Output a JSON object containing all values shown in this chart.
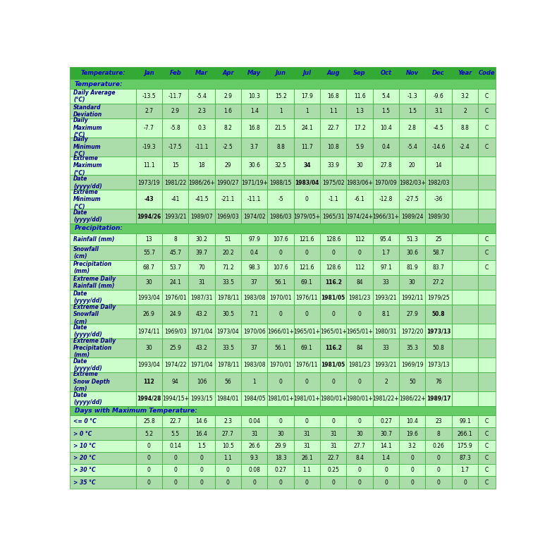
{
  "col_header_bg": "#33AA33",
  "col_header_text": "#0000CC",
  "section_header_bg": "#66CC66",
  "section_header_text": "#0000CC",
  "row_bg_a": "#CCFFCC",
  "row_bg_b": "#AADDAA",
  "border_color": "#33AA33",
  "label_text_color": "#000080",
  "data_text_color": "#000000",
  "col_labels": [
    "Temperature:",
    "Jan",
    "Feb",
    "Mar",
    "Apr",
    "May",
    "Jun",
    "Jul",
    "Aug",
    "Sep",
    "Oct",
    "Nov",
    "Dec",
    "Year",
    "Code"
  ],
  "col_widths_rel": [
    2.05,
    0.82,
    0.82,
    0.82,
    0.82,
    0.82,
    0.82,
    0.82,
    0.82,
    0.82,
    0.82,
    0.82,
    0.82,
    0.82,
    0.55
  ],
  "rows": [
    {
      "type": "section_header",
      "label": "Temperature:"
    },
    {
      "type": "data",
      "label": "Daily Average\n(°C)",
      "values": [
        "-13.5",
        "-11.7",
        "-5.4",
        "2.9",
        "10.3",
        "15.2",
        "17.9",
        "16.8",
        "11.6",
        "5.4",
        "-1.3",
        "-9.6",
        "3.2",
        "C"
      ],
      "bold_vals": []
    },
    {
      "type": "data",
      "label": "Standard\nDeviation",
      "values": [
        "2.7",
        "2.9",
        "2.3",
        "1.6",
        "1.4",
        "1",
        "1",
        "1.1",
        "1.3",
        "1.5",
        "1.5",
        "3.1",
        "2",
        "C"
      ],
      "bold_vals": []
    },
    {
      "type": "data",
      "label": "Daily\nMaximum\n(°C)",
      "values": [
        "-7.7",
        "-5.8",
        "0.3",
        "8.2",
        "16.8",
        "21.5",
        "24.1",
        "22.7",
        "17.2",
        "10.4",
        "2.8",
        "-4.5",
        "8.8",
        "C"
      ],
      "bold_vals": []
    },
    {
      "type": "data",
      "label": "Daily\nMinimum\n(°C)",
      "values": [
        "-19.3",
        "-17.5",
        "-11.1",
        "-2.5",
        "3.7",
        "8.8",
        "11.7",
        "10.8",
        "5.9",
        "0.4",
        "-5.4",
        "-14.6",
        "-2.4",
        "C"
      ],
      "bold_vals": []
    },
    {
      "type": "data",
      "label": "Extreme\nMaximum\n(°C)",
      "values": [
        "11.1",
        "15",
        "18",
        "29",
        "30.6",
        "32.5",
        "34",
        "33.9",
        "30",
        "27.8",
        "20",
        "14",
        "",
        ""
      ],
      "bold_vals": [
        "34"
      ]
    },
    {
      "type": "data",
      "label": "Date\n(yyyy/dd)",
      "values": [
        "1973/19",
        "1981/22",
        "1986/26+",
        "1990/27",
        "1971/19+",
        "1988/15",
        "1983/04",
        "1975/02",
        "1983/06+",
        "1970/09",
        "1982/03+",
        "1982/03",
        "",
        ""
      ],
      "bold_vals": [
        "1983/04"
      ]
    },
    {
      "type": "data",
      "label": "Extreme\nMinimum\n(°C)",
      "values": [
        "-43",
        "-41",
        "-41.5",
        "-21.1",
        "-11.1",
        "-5",
        "0",
        "-1.1",
        "-6.1",
        "-12.8",
        "-27.5",
        "-36",
        "",
        ""
      ],
      "bold_vals": [
        "-43"
      ]
    },
    {
      "type": "data",
      "label": "Date\n(yyyy/dd)",
      "values": [
        "1994/26",
        "1993/21",
        "1989/07",
        "1969/03",
        "1974/02",
        "1986/03",
        "1979/05+",
        "1965/31",
        "1974/24+",
        "1966/31+",
        "1989/24",
        "1989/30",
        "",
        ""
      ],
      "bold_vals": [
        "1994/26"
      ]
    },
    {
      "type": "section_header",
      "label": "Precipitation:"
    },
    {
      "type": "data",
      "label": "Rainfall (mm)",
      "values": [
        "13",
        "8",
        "30.2",
        "51",
        "97.9",
        "107.6",
        "121.6",
        "128.6",
        "112",
        "95.4",
        "51.3",
        "25",
        "",
        "C"
      ],
      "bold_vals": []
    },
    {
      "type": "data",
      "label": "Snowfall\n(cm)",
      "values": [
        "55.7",
        "45.7",
        "39.7",
        "20.2",
        "0.4",
        "0",
        "0",
        "0",
        "0",
        "1.7",
        "30.6",
        "58.7",
        "",
        "C"
      ],
      "bold_vals": []
    },
    {
      "type": "data",
      "label": "Precipitation\n(mm)",
      "values": [
        "68.7",
        "53.7",
        "70",
        "71.2",
        "98.3",
        "107.6",
        "121.6",
        "128.6",
        "112",
        "97.1",
        "81.9",
        "83.7",
        "",
        "C"
      ],
      "bold_vals": []
    },
    {
      "type": "data",
      "label": "Extreme Daily\nRainfall (mm)",
      "values": [
        "30",
        "24.1",
        "31",
        "33.5",
        "37",
        "56.1",
        "69.1",
        "116.2",
        "84",
        "33",
        "30",
        "27.2",
        "",
        ""
      ],
      "bold_vals": [
        "116.2"
      ]
    },
    {
      "type": "data",
      "label": "Date\n(yyyy/dd)",
      "values": [
        "1993/04",
        "1976/01",
        "1987/31",
        "1978/11",
        "1983/08",
        "1970/01",
        "1976/11",
        "1981/05",
        "1981/23",
        "1993/21",
        "1992/11",
        "1979/25",
        "",
        ""
      ],
      "bold_vals": [
        "1981/05"
      ]
    },
    {
      "type": "data",
      "label": "Extreme Daily\nSnowfall\n(cm)",
      "values": [
        "26.9",
        "24.9",
        "43.2",
        "30.5",
        "7.1",
        "0",
        "0",
        "0",
        "0",
        "8.1",
        "27.9",
        "50.8",
        "",
        ""
      ],
      "bold_vals": [
        "50.8"
      ]
    },
    {
      "type": "data",
      "label": "Date\n(yyyy/dd)",
      "values": [
        "1974/11",
        "1969/03",
        "1971/04",
        "1973/04",
        "1970/06",
        "1966/01+",
        "1965/01+",
        "1965/01+",
        "1965/01+",
        "1980/31",
        "1972/20",
        "1973/13",
        "",
        ""
      ],
      "bold_vals": [
        "1973/13"
      ]
    },
    {
      "type": "data",
      "label": "Extreme Daily\nPrecipitation\n(mm)",
      "values": [
        "30",
        "25.9",
        "43.2",
        "33.5",
        "37",
        "56.1",
        "69.1",
        "116.2",
        "84",
        "33",
        "35.3",
        "50.8",
        "",
        ""
      ],
      "bold_vals": [
        "116.2"
      ]
    },
    {
      "type": "data",
      "label": "Date\n(yyyy/dd)",
      "values": [
        "1993/04",
        "1974/22",
        "1971/04",
        "1978/11",
        "1983/08",
        "1970/01",
        "1976/11",
        "1981/05",
        "1981/23",
        "1993/21",
        "1969/19",
        "1973/13",
        "",
        ""
      ],
      "bold_vals": [
        "1981/05"
      ]
    },
    {
      "type": "data",
      "label": "Extreme\nSnow Depth\n(cm)",
      "values": [
        "112",
        "94",
        "106",
        "56",
        "1",
        "0",
        "0",
        "0",
        "0",
        "2",
        "50",
        "76",
        "",
        ""
      ],
      "bold_vals": [
        "112"
      ]
    },
    {
      "type": "data",
      "label": "Date\n(yyyy/dd)",
      "values": [
        "1994/28",
        "1994/15+",
        "1993/15",
        "1984/01",
        "1984/05",
        "1981/01+",
        "1981/01+",
        "1980/01+",
        "1980/01+",
        "1981/22+",
        "1986/22+",
        "1989/17",
        "",
        ""
      ],
      "bold_vals": [
        "1994/28",
        "1989/17"
      ]
    },
    {
      "type": "section_header",
      "label": "Days with Maximum Temperature:"
    },
    {
      "type": "data",
      "label": "<= 0 °C",
      "values": [
        "25.8",
        "22.7",
        "14.6",
        "2.3",
        "0.04",
        "0",
        "0",
        "0",
        "0",
        "0.27",
        "10.4",
        "23",
        "99.1",
        "C"
      ],
      "bold_vals": []
    },
    {
      "type": "data",
      "label": "> 0 °C",
      "values": [
        "5.2",
        "5.5",
        "16.4",
        "27.7",
        "31",
        "30",
        "31",
        "31",
        "30",
        "30.7",
        "19.6",
        "8",
        "266.1",
        "C"
      ],
      "bold_vals": []
    },
    {
      "type": "data",
      "label": "> 10 °C",
      "values": [
        "0",
        "0.14",
        "1.5",
        "10.5",
        "26.6",
        "29.9",
        "31",
        "31",
        "27.7",
        "14.1",
        "3.2",
        "0.26",
        "175.9",
        "C"
      ],
      "bold_vals": []
    },
    {
      "type": "data",
      "label": "> 20 °C",
      "values": [
        "0",
        "0",
        "0",
        "1.1",
        "9.3",
        "18.3",
        "26.1",
        "22.7",
        "8.4",
        "1.4",
        "0",
        "0",
        "87.3",
        "C"
      ],
      "bold_vals": []
    },
    {
      "type": "data",
      "label": "> 30 °C",
      "values": [
        "0",
        "0",
        "0",
        "0",
        "0.08",
        "0.27",
        "1.1",
        "0.25",
        "0",
        "0",
        "0",
        "0",
        "1.7",
        "C"
      ],
      "bold_vals": []
    },
    {
      "type": "data",
      "label": "> 35 °C",
      "values": [
        "0",
        "0",
        "0",
        "0",
        "0",
        "0",
        "0",
        "0",
        "0",
        "0",
        "0",
        "0",
        "0",
        "C"
      ],
      "bold_vals": []
    }
  ]
}
